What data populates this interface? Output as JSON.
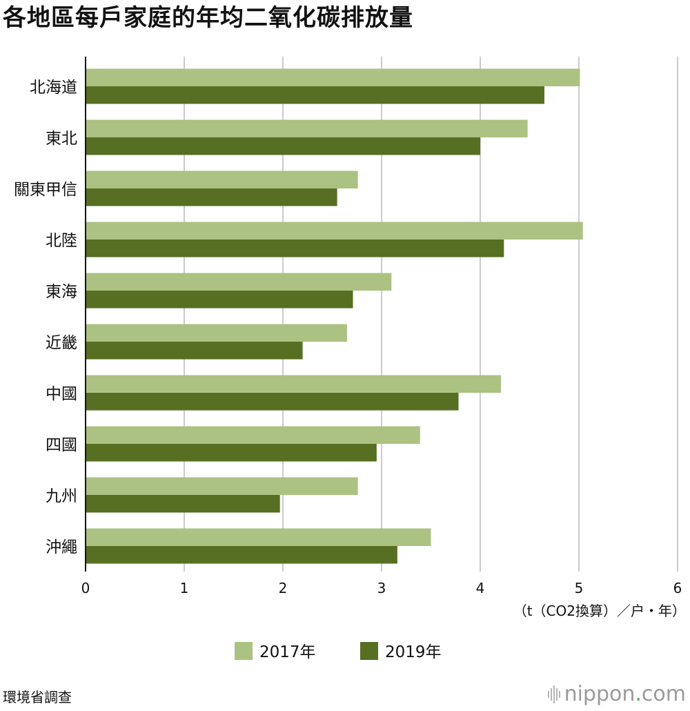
{
  "title": "各地區每戶家庭的年均二氧化碳排放量",
  "source": "環境省調查",
  "brand": {
    "name": "nippon",
    "dot": ".",
    "tld": "com"
  },
  "colors": {
    "s2017": "#abc282",
    "s2019": "#566f22",
    "grid": "#cccccc",
    "axis": "#111111"
  },
  "chart_data": {
    "type": "bar",
    "orientation": "horizontal",
    "title": "各地區每戶家庭的年均二氧化碳排放量",
    "unit_label": "（t（CO2換算）／户・年）",
    "categories": [
      "北海道",
      "東北",
      "關東甲信",
      "北陸",
      "東海",
      "近畿",
      "中國",
      "四國",
      "九州",
      "沖繩"
    ],
    "series": [
      {
        "name": "2017年",
        "values": [
          5.01,
          4.48,
          2.76,
          5.04,
          3.1,
          2.65,
          4.21,
          3.39,
          2.76,
          3.5
        ]
      },
      {
        "name": "2019年",
        "values": [
          4.65,
          4.0,
          2.55,
          4.24,
          2.71,
          2.2,
          3.78,
          2.95,
          1.97,
          3.16
        ]
      }
    ],
    "xlim": [
      0,
      6
    ],
    "xticks": [
      "0",
      "1",
      "2",
      "3",
      "4",
      "5",
      "6"
    ],
    "grid": true,
    "legend_position": "bottom"
  }
}
